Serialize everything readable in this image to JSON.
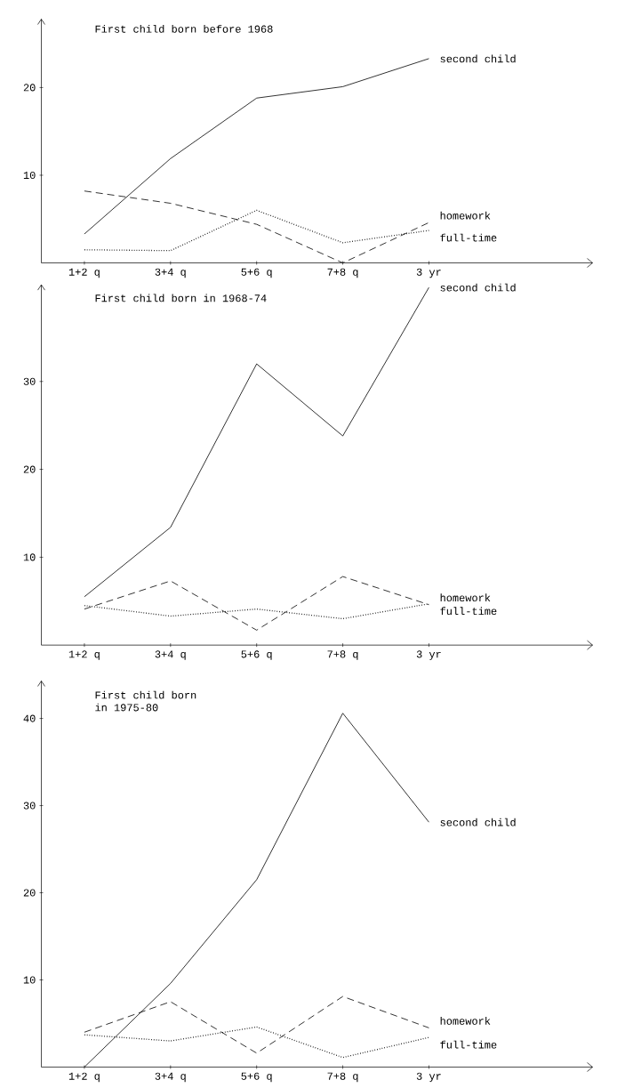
{
  "chart_data": [
    {
      "type": "line",
      "title": "First child born before 1968",
      "categories": [
        "1+2 q",
        "3+4 q",
        "5+6 q",
        "7+8 q",
        "3 yr"
      ],
      "ylim": [
        0,
        27.8
      ],
      "yticks": [
        10,
        20
      ],
      "series": [
        {
          "name": "second child",
          "color": "#000000",
          "line_style": "solid",
          "values": [
            3.3,
            11.9,
            18.8,
            20.1,
            23.3
          ]
        },
        {
          "name": "homework",
          "color": "#000000",
          "line_style": "dashed",
          "values": [
            8.2,
            6.8,
            4.4,
            0,
            4.6
          ]
        },
        {
          "name": "full-time",
          "color": "#000000",
          "line_style": "dotted",
          "values": [
            1.5,
            1.4,
            6.0,
            2.3,
            3.7
          ]
        }
      ]
    },
    {
      "type": "line",
      "title": "First child born in 1968-74",
      "categories": [
        "1+2 q",
        "3+4 q",
        "5+6 q",
        "7+8 q",
        "3 yr"
      ],
      "ylim": [
        0,
        41
      ],
      "yticks": [
        10,
        20,
        30
      ],
      "series": [
        {
          "name": "second child",
          "color": "#000000",
          "line_style": "solid",
          "values": [
            5.5,
            13.4,
            32.0,
            23.8,
            40.7
          ]
        },
        {
          "name": "homework",
          "color": "#000000",
          "line_style": "dashed",
          "values": [
            4.1,
            7.3,
            1.7,
            7.8,
            4.6
          ]
        },
        {
          "name": "full-time",
          "color": "#000000",
          "line_style": "dotted",
          "values": [
            4.5,
            3.3,
            4.1,
            3.0,
            4.7
          ]
        }
      ]
    },
    {
      "type": "line",
      "title": "First child born",
      "subtitle": "in 1975-80",
      "categories": [
        "1+2 q",
        "3+4 q",
        "5+6 q",
        "7+8 q",
        "3 yr"
      ],
      "ylim": [
        0,
        44.3
      ],
      "yticks": [
        10,
        20,
        30,
        40
      ],
      "series": [
        {
          "name": "second child",
          "color": "#000000",
          "line_style": "solid",
          "values": [
            0,
            9.6,
            21.5,
            40.6,
            28.1
          ]
        },
        {
          "name": "homework",
          "color": "#000000",
          "line_style": "dashed",
          "values": [
            4.0,
            7.5,
            1.6,
            8.1,
            4.5
          ]
        },
        {
          "name": "full-time",
          "color": "#000000",
          "line_style": "dotted",
          "values": [
            3.7,
            3.0,
            4.6,
            1.1,
            3.4
          ]
        }
      ]
    }
  ]
}
